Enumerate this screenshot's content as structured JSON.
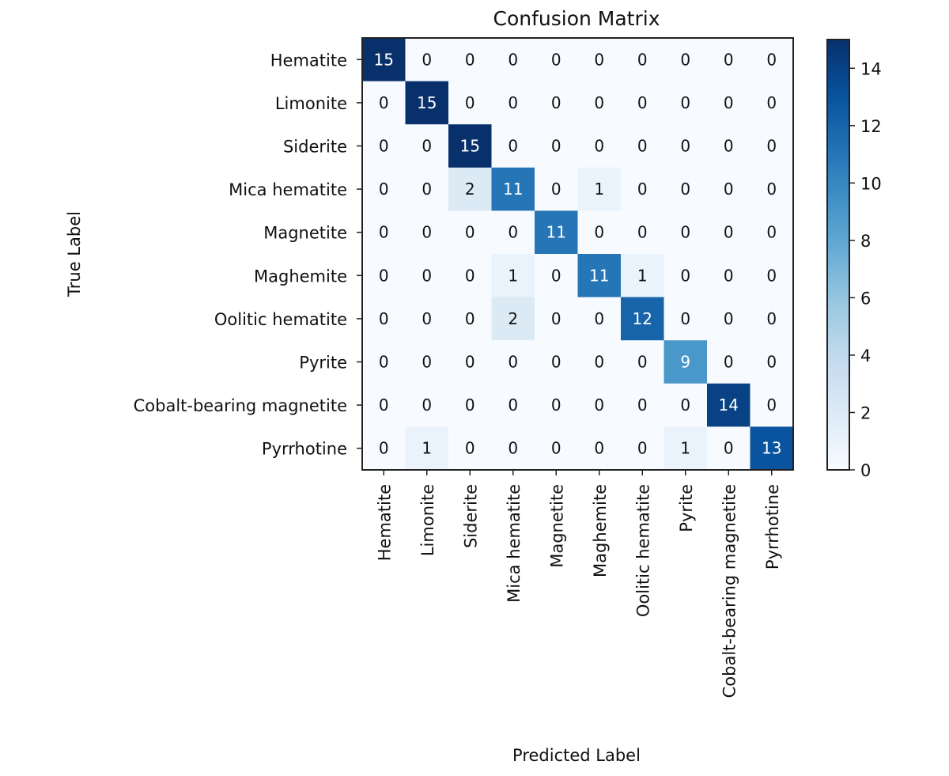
{
  "chart_data": {
    "type": "heatmap",
    "title": "Confusion Matrix",
    "xlabel": "Predicted Label",
    "ylabel": "True Label",
    "row_labels": [
      "Hematite",
      "Limonite",
      "Siderite",
      "Mica hematite",
      "Magnetite",
      "Maghemite",
      "Oolitic hematite",
      "Pyrite",
      "Cobalt-bearing magnetite",
      "Pyrrhotine"
    ],
    "col_labels": [
      "Hematite",
      "Limonite",
      "Siderite",
      "Mica hematite",
      "Magnetite",
      "Maghemite",
      "Oolitic hematite",
      "Pyrite",
      "Cobalt-bearing magnetite",
      "Pyrrhotine"
    ],
    "values": [
      [
        15,
        0,
        0,
        0,
        0,
        0,
        0,
        0,
        0,
        0
      ],
      [
        0,
        15,
        0,
        0,
        0,
        0,
        0,
        0,
        0,
        0
      ],
      [
        0,
        0,
        15,
        0,
        0,
        0,
        0,
        0,
        0,
        0
      ],
      [
        0,
        0,
        2,
        11,
        0,
        1,
        0,
        0,
        0,
        0
      ],
      [
        0,
        0,
        0,
        0,
        11,
        0,
        0,
        0,
        0,
        0
      ],
      [
        0,
        0,
        0,
        1,
        0,
        11,
        1,
        0,
        0,
        0
      ],
      [
        0,
        0,
        0,
        2,
        0,
        0,
        12,
        0,
        0,
        0
      ],
      [
        0,
        0,
        0,
        0,
        0,
        0,
        0,
        9,
        0,
        0
      ],
      [
        0,
        0,
        0,
        0,
        0,
        0,
        0,
        0,
        14,
        0
      ],
      [
        0,
        1,
        0,
        0,
        0,
        0,
        0,
        1,
        0,
        13
      ]
    ],
    "colorbar": {
      "min": 0,
      "max": 15,
      "ticks": [
        0,
        2,
        4,
        6,
        8,
        10,
        12,
        14
      ],
      "colormap": "Blues"
    },
    "colors": {
      "low": "#f7fbff",
      "high": "#08306b"
    }
  }
}
